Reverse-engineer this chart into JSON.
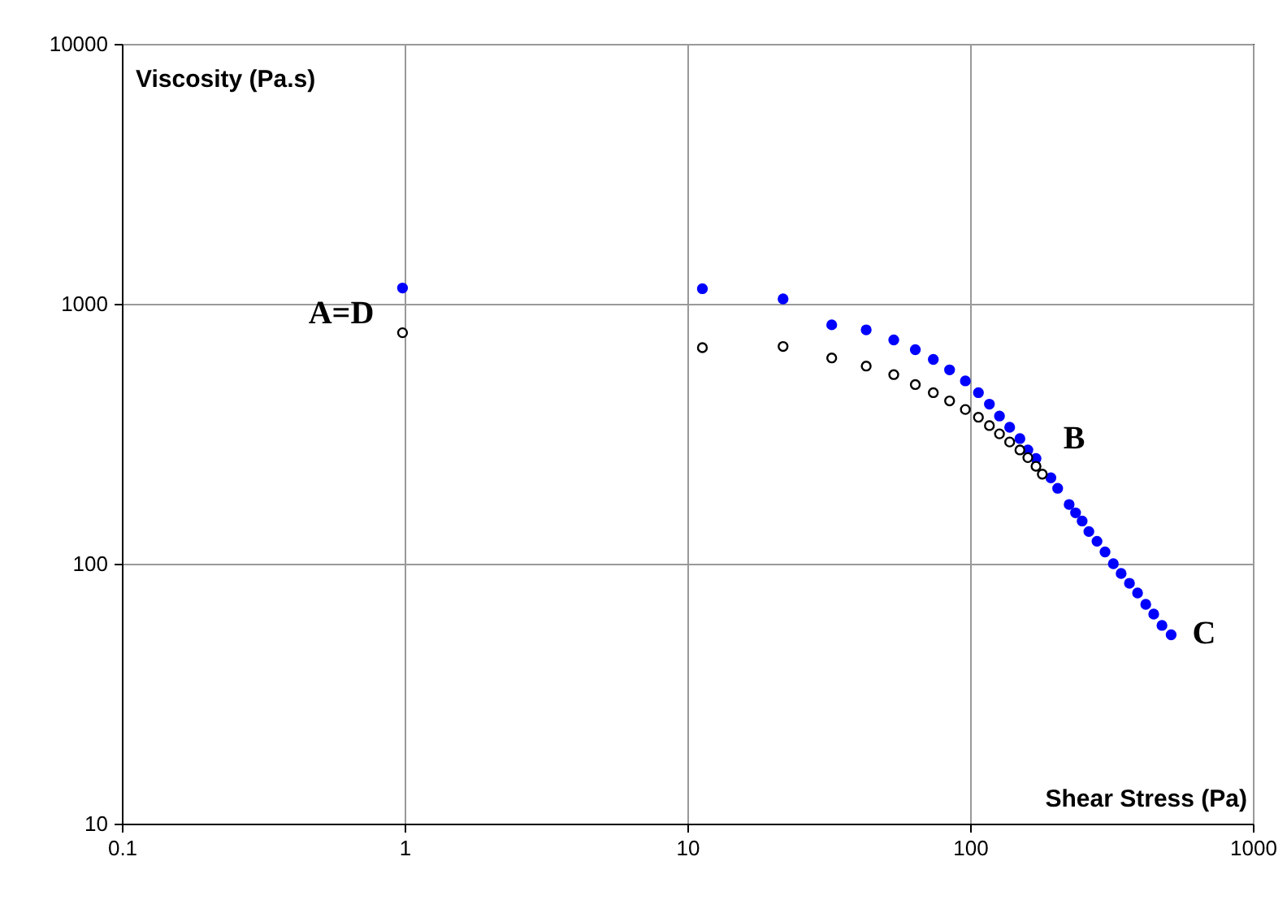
{
  "chart_data": {
    "type": "scatter",
    "xlabel": "Shear Stress (Pa)",
    "ylabel": "Viscosity (Pa.s)",
    "log": "xy",
    "xlim": [
      0.1,
      1000
    ],
    "xticks": [
      0.1,
      1,
      10,
      100,
      {
        "value": 1000,
        "label": "1000"
      }
    ],
    "ylim": [
      10,
      10000
    ],
    "yticks": [
      10,
      100,
      1000,
      10000
    ],
    "grid": true,
    "marker": "circle",
    "annotations": [
      "A=D",
      "B",
      "C"
    ],
    "series": [
      {
        "color": "#0000ff",
        "x": [
          0.983,
          11.3,
          21.8,
          32.4,
          42.9,
          53.7,
          64.0,
          74.1,
          84.6,
          96.2,
          107,
          117,
          127,
          138,
          150,
          160,
          171,
          193,
          204,
          224,
          236,
          249,
          263,
          281,
          300,
          321,
          342,
          366,
          391,
          418,
          446,
          477,
          514
        ],
        "values": [
          1150,
          1143,
          1044,
          830,
          794,
          726,
          666,
          611,
          557,
          505,
          455,
          411,
          370,
          335,
          303,
          274,
          254,
          214,
          195,
          169,
          157,
          146,
          133,
          122,
          111,
          100,
          91.7,
          84.1,
          77.2,
          69.8,
          64.0,
          57.9,
          53.3
        ]
      },
      {
        "color": "#ffffff",
        "x": [
          0.983,
          11.3,
          21.8,
          32.4,
          42.9,
          53.7,
          64.0,
          74.1,
          84.6,
          96.2,
          107,
          117,
          127,
          138,
          150,
          160,
          171,
          180
        ],
        "values": [
          774,
          678,
          685,
          619,
          576,
          534,
          489,
          455,
          423,
          392,
          366,
          340,
          316,
          294,
          274,
          256,
          237,
          221
        ]
      }
    ]
  }
}
